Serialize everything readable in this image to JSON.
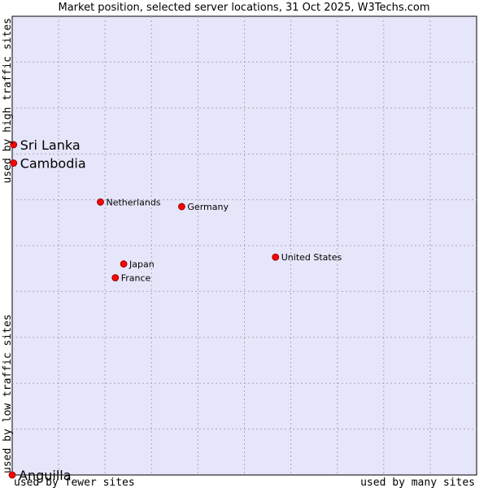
{
  "chart_data": {
    "type": "scatter",
    "title": "Market position, selected server locations, 31 Oct 2025, W3Techs.com",
    "xlabel_left": "used by fewer sites",
    "xlabel_right": "used by many sites",
    "ylabel_bottom": "used by low traffic sites",
    "ylabel_top": "used by high traffic sites",
    "xlim": [
      0,
      100
    ],
    "ylim": [
      0,
      100
    ],
    "grid": true,
    "point_color": "#ff0000",
    "plot_background": "#e6e6fa",
    "points": [
      {
        "name": "Sri Lanka",
        "x": 0.3,
        "y": 72.0,
        "emphasis": true
      },
      {
        "name": "Cambodia",
        "x": 0.3,
        "y": 68.0,
        "emphasis": true
      },
      {
        "name": "Netherlands",
        "x": 19.0,
        "y": 59.5,
        "emphasis": false
      },
      {
        "name": "Germany",
        "x": 36.5,
        "y": 58.5,
        "emphasis": false
      },
      {
        "name": "United States",
        "x": 56.7,
        "y": 47.5,
        "emphasis": false
      },
      {
        "name": "Japan",
        "x": 24.0,
        "y": 46.0,
        "emphasis": false
      },
      {
        "name": "France",
        "x": 22.2,
        "y": 43.0,
        "emphasis": false
      },
      {
        "name": "Anguilla",
        "x": 0.0,
        "y": 0.0,
        "emphasis": true
      }
    ]
  }
}
